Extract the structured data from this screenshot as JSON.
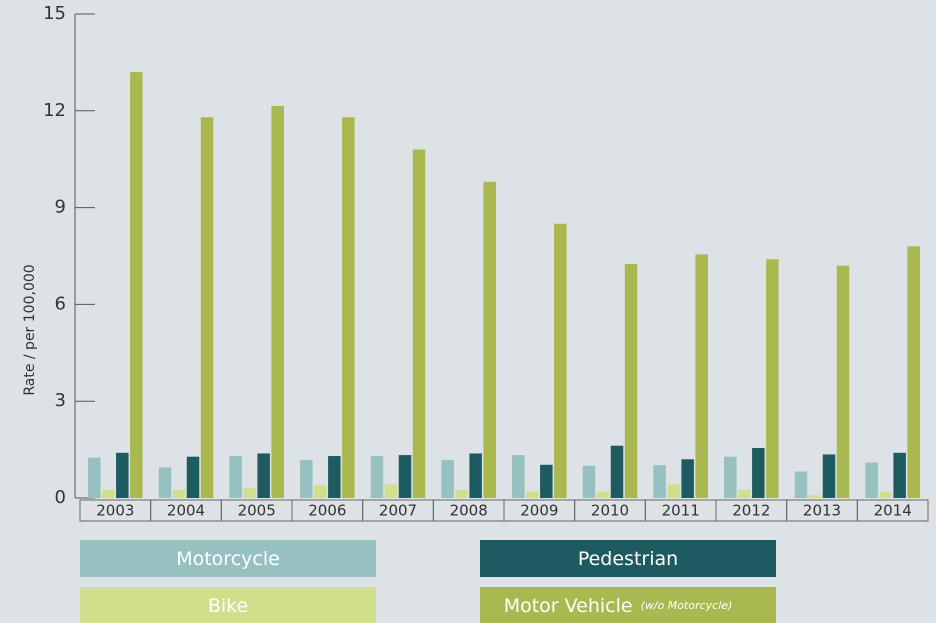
{
  "chart_data": {
    "type": "bar",
    "y_label": "Rate / per 100,000",
    "categories": [
      "2003",
      "2004",
      "2005",
      "2006",
      "2007",
      "2008",
      "2009",
      "2010",
      "2011",
      "2012",
      "2013",
      "2014"
    ],
    "series": [
      {
        "name": "Motorcycle",
        "color": "#97c1c0",
        "values": [
          1.25,
          0.95,
          1.3,
          1.18,
          1.3,
          1.18,
          1.33,
          1.0,
          1.02,
          1.28,
          0.82,
          1.1
        ]
      },
      {
        "name": "Bike",
        "color": "#d0e08a",
        "values": [
          0.25,
          0.25,
          0.3,
          0.4,
          0.42,
          0.25,
          0.2,
          0.2,
          0.42,
          0.25,
          0.08,
          0.2
        ]
      },
      {
        "name": "Pedestrian",
        "color": "#1d5b60",
        "values": [
          1.4,
          1.28,
          1.38,
          1.3,
          1.33,
          1.38,
          1.03,
          1.62,
          1.2,
          1.55,
          1.35,
          1.4
        ]
      },
      {
        "name": "Motor Vehicle",
        "color": "#a9b94f",
        "values": [
          13.2,
          11.8,
          12.15,
          11.8,
          10.8,
          9.8,
          8.5,
          7.25,
          7.55,
          7.4,
          7.2,
          7.8
        ]
      }
    ],
    "legend_note": "(w/o Motorcycle)",
    "ylim": [
      0,
      15
    ],
    "yticks": [
      0,
      3,
      6,
      9,
      12,
      15
    ]
  }
}
